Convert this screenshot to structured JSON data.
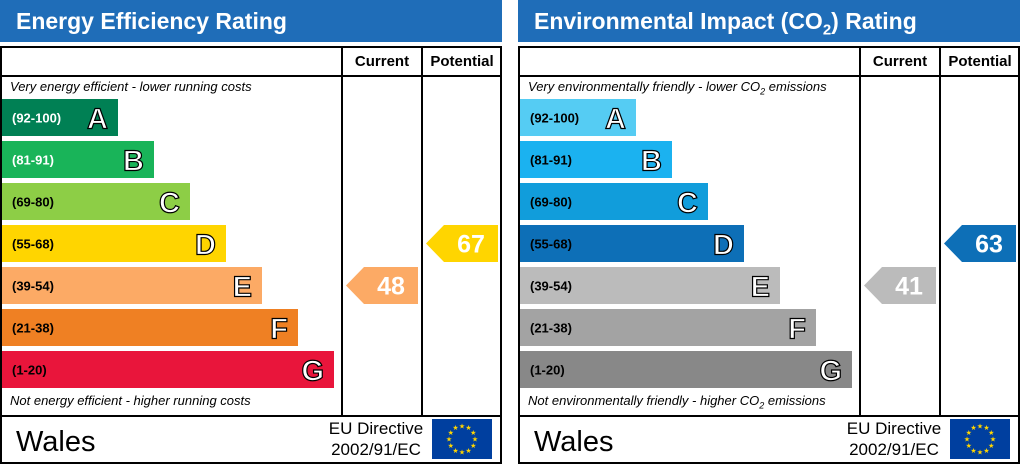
{
  "panels": [
    {
      "title_main": "Energy Efficiency Rating",
      "title_sub": "",
      "title_tail": "",
      "col_current": "Current",
      "col_potential": "Potential",
      "note_top": "Very energy efficient - lower running costs",
      "note_top_sub": "",
      "note_top_tail": "",
      "note_bottom": "Not energy efficient - higher running costs",
      "note_bottom_sub": "",
      "note_bottom_tail": "",
      "region": "Wales",
      "directive_line1": "EU Directive",
      "directive_line2": "2002/91/EC"
    },
    {
      "title_main": "Environmental Impact (CO",
      "title_sub": "2",
      "title_tail": ") Rating",
      "col_current": "Current",
      "col_potential": "Potential",
      "note_top": "Very environmentally friendly - lower CO",
      "note_top_sub": "2",
      "note_top_tail": " emissions",
      "note_bottom": "Not environmentally friendly - higher CO",
      "note_bottom_sub": "2",
      "note_bottom_tail": " emissions",
      "region": "Wales",
      "directive_line1": "EU Directive",
      "directive_line2": "2002/91/EC"
    }
  ],
  "chart_data": [
    {
      "type": "bar",
      "title": "Energy Efficiency Rating",
      "categories": [
        "A",
        "B",
        "C",
        "D",
        "E",
        "F",
        "G"
      ],
      "ranges": [
        "(92-100)",
        "(81-91)",
        "(69-80)",
        "(55-68)",
        "(39-54)",
        "(21-38)",
        "(1-20)"
      ],
      "colors": [
        "#008054",
        "#19b459",
        "#8dce46",
        "#ffd500",
        "#fcaa65",
        "#ef8023",
        "#e9153b"
      ],
      "current": {
        "value": 48,
        "band": "E",
        "color": "#fcaa65"
      },
      "potential": {
        "value": 67,
        "band": "D",
        "color": "#ffd500"
      }
    },
    {
      "type": "bar",
      "title": "Environmental Impact (CO2) Rating",
      "categories": [
        "A",
        "B",
        "C",
        "D",
        "E",
        "F",
        "G"
      ],
      "ranges": [
        "(92-100)",
        "(81-91)",
        "(69-80)",
        "(55-68)",
        "(39-54)",
        "(21-38)",
        "(1-20)"
      ],
      "colors": [
        "#55ccf3",
        "#1bb2f0",
        "#119ddb",
        "#0d6fb7",
        "#bbbbbb",
        "#a3a3a3",
        "#888888"
      ],
      "current": {
        "value": 41,
        "band": "E",
        "color": "#bbbbbb"
      },
      "potential": {
        "value": 63,
        "band": "D",
        "color": "#0d6fb7"
      }
    }
  ]
}
